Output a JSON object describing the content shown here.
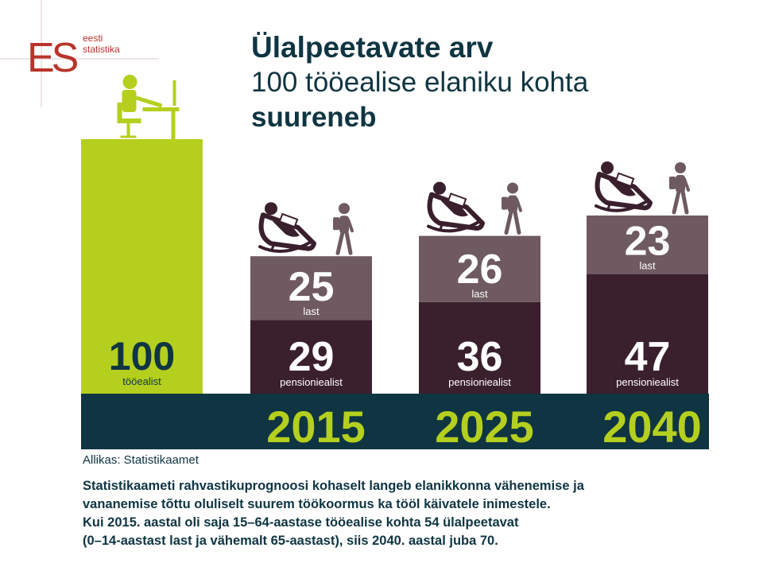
{
  "logo": {
    "mark": "ES",
    "line1": "eesti",
    "line2": "statistika"
  },
  "title": {
    "line1": "Ülalpeetavate arv",
    "line2": "100 tööealise elaniku kohta",
    "line3": "suureneb"
  },
  "chart_data": {
    "type": "bar",
    "stacked": true,
    "base": {
      "value": "100",
      "label": "tööealist"
    },
    "categories": [
      "2015",
      "2025",
      "2040"
    ],
    "series": [
      {
        "name": "pensioniealist",
        "values": [
          29,
          36,
          47
        ]
      },
      {
        "name": "last",
        "values": [
          25,
          26,
          23
        ]
      }
    ],
    "ylim": [
      0,
      100
    ],
    "colors": {
      "base": "#b5cf1f",
      "pensioniealist": "#3a1f2c",
      "last": "#6e5a60",
      "band": "#0f3542",
      "year": "#b5cf1f",
      "icons": "#3a1f2c"
    },
    "icons": [
      "person-at-desk-icon",
      "rocking-chair-reader-icon",
      "walking-child-icon"
    ]
  },
  "source": "Allikas: Statistikaamet",
  "description": [
    "Statistikaameti rahvastikuprognoosi kohaselt langeb elanikkonna vähenemise ja",
    "vananemise tõttu oluliselt suurem töökoormus ka tööl käivatele inimestele.",
    "Kui 2015. aastal oli saja 15–64-aastase tööealise kohta 54 ülalpeetavat",
    "(0–14-aastast last ja vähemalt 65-aastast), siis 2040. aastal juba 70."
  ]
}
